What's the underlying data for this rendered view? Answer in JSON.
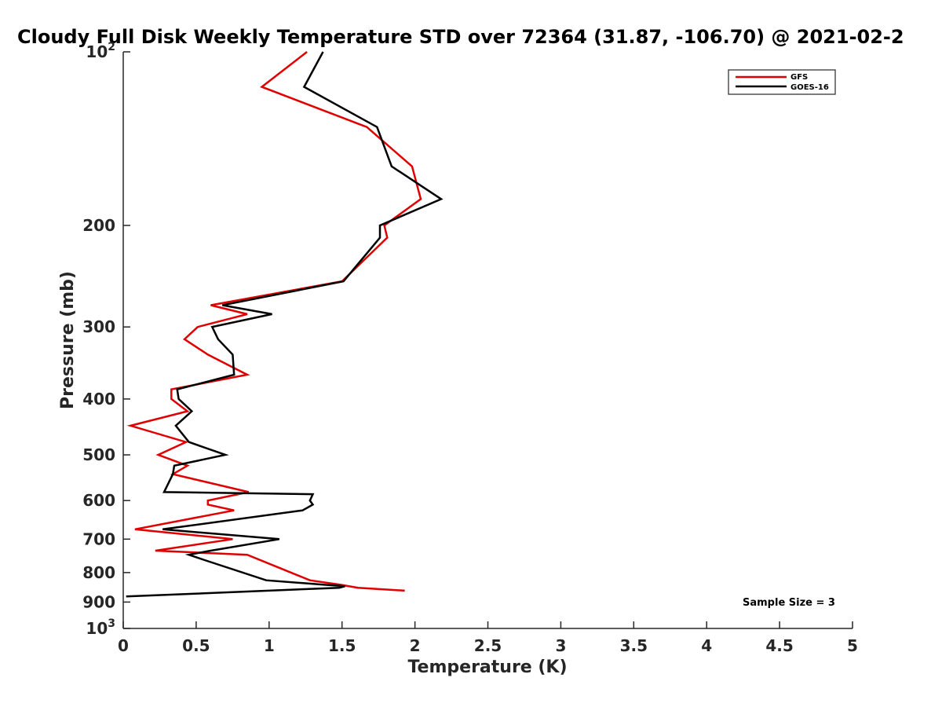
{
  "chart_data": {
    "type": "line",
    "title": "Cloudy Full Disk Weekly Temperature STD over 72364 (31.87, -106.70) @ 2021-02-2",
    "xlabel": "Temperature (K)",
    "ylabel": "Pressure (mb)",
    "xlim": [
      0,
      5
    ],
    "ylim": [
      100,
      1000
    ],
    "y_scale": "log",
    "y_reversed": true,
    "grid": false,
    "legend_position": "top-right",
    "x_ticks": [
      "0",
      "0.5",
      "1",
      "1.5",
      "2",
      "2.5",
      "3",
      "3.5",
      "4",
      "4.5",
      "5"
    ],
    "y_ticks": [
      {
        "value": 100,
        "base": "10",
        "exp": "2"
      },
      {
        "value": 200,
        "label": "200"
      },
      {
        "value": 300,
        "label": "300"
      },
      {
        "value": 400,
        "label": "400"
      },
      {
        "value": 500,
        "label": "500"
      },
      {
        "value": 600,
        "label": "600"
      },
      {
        "value": 700,
        "label": "700"
      },
      {
        "value": 800,
        "label": "800"
      },
      {
        "value": 900,
        "label": "900"
      },
      {
        "value": 1000,
        "base": "10",
        "exp": "3"
      }
    ],
    "series": [
      {
        "name": "GFS",
        "color": "#e00000",
        "points": [
          [
            1.26,
            100
          ],
          [
            0.95,
            115
          ],
          [
            1.67,
            135
          ],
          [
            1.98,
            158
          ],
          [
            2.04,
            180
          ],
          [
            1.79,
            200
          ],
          [
            1.81,
            210
          ],
          [
            1.5,
            250
          ],
          [
            0.6,
            275
          ],
          [
            0.85,
            285
          ],
          [
            0.51,
            300
          ],
          [
            0.42,
            315
          ],
          [
            0.58,
            335
          ],
          [
            0.85,
            363
          ],
          [
            0.33,
            385
          ],
          [
            0.33,
            400
          ],
          [
            0.44,
            420
          ],
          [
            0.05,
            445
          ],
          [
            0.43,
            475
          ],
          [
            0.24,
            500
          ],
          [
            0.44,
            522
          ],
          [
            0.34,
            540
          ],
          [
            0.86,
            580
          ],
          [
            0.58,
            600
          ],
          [
            0.58,
            610
          ],
          [
            0.76,
            624
          ],
          [
            0.08,
            673
          ],
          [
            0.75,
            700
          ],
          [
            0.22,
            733
          ],
          [
            0.85,
            745
          ],
          [
            1.28,
            825
          ],
          [
            1.49,
            840
          ],
          [
            1.61,
            850
          ],
          [
            1.93,
            860
          ]
        ]
      },
      {
        "name": "GOES-16",
        "color": "#000000",
        "points": [
          [
            1.37,
            100
          ],
          [
            1.24,
            115
          ],
          [
            1.74,
            135
          ],
          [
            1.84,
            158
          ],
          [
            2.18,
            180
          ],
          [
            1.76,
            200
          ],
          [
            1.76,
            210
          ],
          [
            1.51,
            250
          ],
          [
            0.68,
            275
          ],
          [
            1.02,
            285
          ],
          [
            0.61,
            300
          ],
          [
            0.65,
            315
          ],
          [
            0.75,
            335
          ],
          [
            0.76,
            363
          ],
          [
            0.37,
            385
          ],
          [
            0.38,
            400
          ],
          [
            0.47,
            420
          ],
          [
            0.36,
            445
          ],
          [
            0.45,
            475
          ],
          [
            0.7,
            500
          ],
          [
            0.35,
            522
          ],
          [
            0.34,
            540
          ],
          [
            0.28,
            580
          ],
          [
            1.3,
            585
          ],
          [
            1.28,
            600
          ],
          [
            1.3,
            610
          ],
          [
            1.23,
            624
          ],
          [
            0.27,
            673
          ],
          [
            1.07,
            700
          ],
          [
            0.6,
            733
          ],
          [
            0.45,
            745
          ],
          [
            0.55,
            760
          ],
          [
            0.98,
            825
          ],
          [
            1.38,
            840
          ],
          [
            1.52,
            845
          ],
          [
            1.48,
            850
          ],
          [
            0.02,
            880
          ]
        ]
      }
    ],
    "legend_entries": [
      "GFS",
      "GOES-16"
    ],
    "annotations": [
      {
        "text": "Sample Size = 3",
        "position": "bottom-right"
      }
    ]
  }
}
